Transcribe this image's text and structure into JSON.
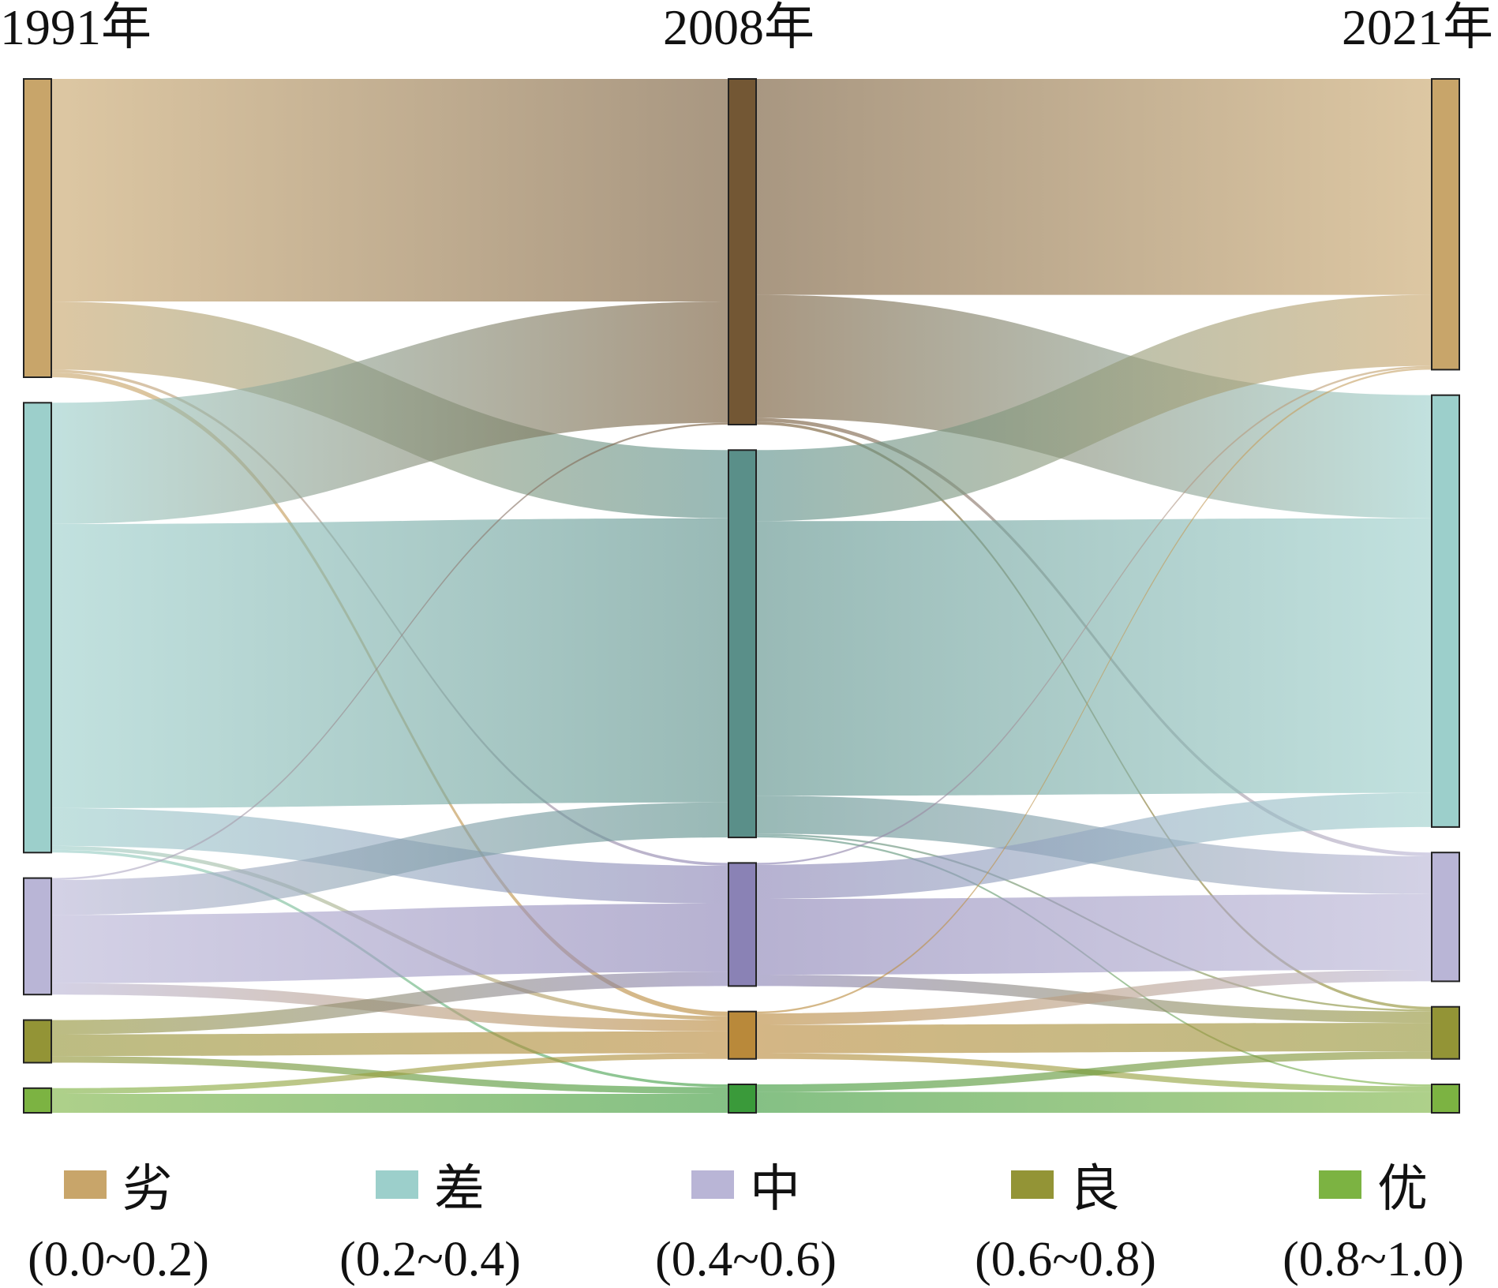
{
  "chart_data": {
    "type": "sankey",
    "columns": [
      "1991年",
      "2008年",
      "2021年"
    ],
    "categories": [
      "劣",
      "差",
      "中",
      "良",
      "优"
    ],
    "category_colors": [
      "#c8a56a",
      "#9ccfcb",
      "#b9b5d6",
      "#939436",
      "#7cb342"
    ],
    "mid_column_colors": [
      "#735734",
      "#5a8f89",
      "#8a82b5",
      "#b9893a",
      "#3a9a3a"
    ],
    "flows": [
      {
        "from_col": 0,
        "from": 0,
        "to": 0,
        "value": 235
      },
      {
        "from_col": 0,
        "from": 0,
        "to": 1,
        "value": 72
      },
      {
        "from_col": 0,
        "from": 0,
        "to": 2,
        "value": 3
      },
      {
        "from_col": 0,
        "from": 0,
        "to": 3,
        "value": 5
      },
      {
        "from_col": 0,
        "from": 1,
        "to": 0,
        "value": 128
      },
      {
        "from_col": 0,
        "from": 1,
        "to": 1,
        "value": 300
      },
      {
        "from_col": 0,
        "from": 1,
        "to": 2,
        "value": 40
      },
      {
        "from_col": 0,
        "from": 1,
        "to": 3,
        "value": 4
      },
      {
        "from_col": 0,
        "from": 1,
        "to": 4,
        "value": 3
      },
      {
        "from_col": 0,
        "from": 2,
        "to": 0,
        "value": 2
      },
      {
        "from_col": 0,
        "from": 2,
        "to": 1,
        "value": 37
      },
      {
        "from_col": 0,
        "from": 2,
        "to": 2,
        "value": 72
      },
      {
        "from_col": 0,
        "from": 2,
        "to": 3,
        "value": 12
      },
      {
        "from_col": 0,
        "from": 3,
        "to": 2,
        "value": 15
      },
      {
        "from_col": 0,
        "from": 3,
        "to": 3,
        "value": 23
      },
      {
        "from_col": 0,
        "from": 3,
        "to": 4,
        "value": 7
      },
      {
        "from_col": 0,
        "from": 4,
        "to": 3,
        "value": 6
      },
      {
        "from_col": 0,
        "from": 4,
        "to": 4,
        "value": 20
      },
      {
        "from_col": 1,
        "from": 0,
        "to": 0,
        "value": 228
      },
      {
        "from_col": 1,
        "from": 0,
        "to": 1,
        "value": 130
      },
      {
        "from_col": 1,
        "from": 0,
        "to": 2,
        "value": 4
      },
      {
        "from_col": 1,
        "from": 0,
        "to": 3,
        "value": 3
      },
      {
        "from_col": 1,
        "from": 1,
        "to": 0,
        "value": 75
      },
      {
        "from_col": 1,
        "from": 1,
        "to": 1,
        "value": 290
      },
      {
        "from_col": 1,
        "from": 1,
        "to": 2,
        "value": 40
      },
      {
        "from_col": 1,
        "from": 1,
        "to": 3,
        "value": 2
      },
      {
        "from_col": 1,
        "from": 1,
        "to": 4,
        "value": 2
      },
      {
        "from_col": 1,
        "from": 2,
        "to": 0,
        "value": 2
      },
      {
        "from_col": 1,
        "from": 2,
        "to": 1,
        "value": 36
      },
      {
        "from_col": 1,
        "from": 2,
        "to": 2,
        "value": 80
      },
      {
        "from_col": 1,
        "from": 2,
        "to": 3,
        "value": 12
      },
      {
        "from_col": 1,
        "from": 3,
        "to": 0,
        "value": 2
      },
      {
        "from_col": 1,
        "from": 3,
        "to": 2,
        "value": 12
      },
      {
        "from_col": 1,
        "from": 3,
        "to": 3,
        "value": 30
      },
      {
        "from_col": 1,
        "from": 3,
        "to": 4,
        "value": 6
      },
      {
        "from_col": 1,
        "from": 4,
        "to": 3,
        "value": 8
      },
      {
        "from_col": 1,
        "from": 4,
        "to": 4,
        "value": 22
      }
    ],
    "legend": [
      {
        "name": "劣",
        "range": "(0.0~0.2)"
      },
      {
        "name": "差",
        "range": "(0.2~0.4)"
      },
      {
        "name": "中",
        "range": "(0.4~0.6)"
      },
      {
        "name": "良",
        "range": "(0.6~0.8)"
      },
      {
        "name": "优",
        "range": "(0.8~1.0)"
      }
    ],
    "legend_placement": "bottom"
  }
}
